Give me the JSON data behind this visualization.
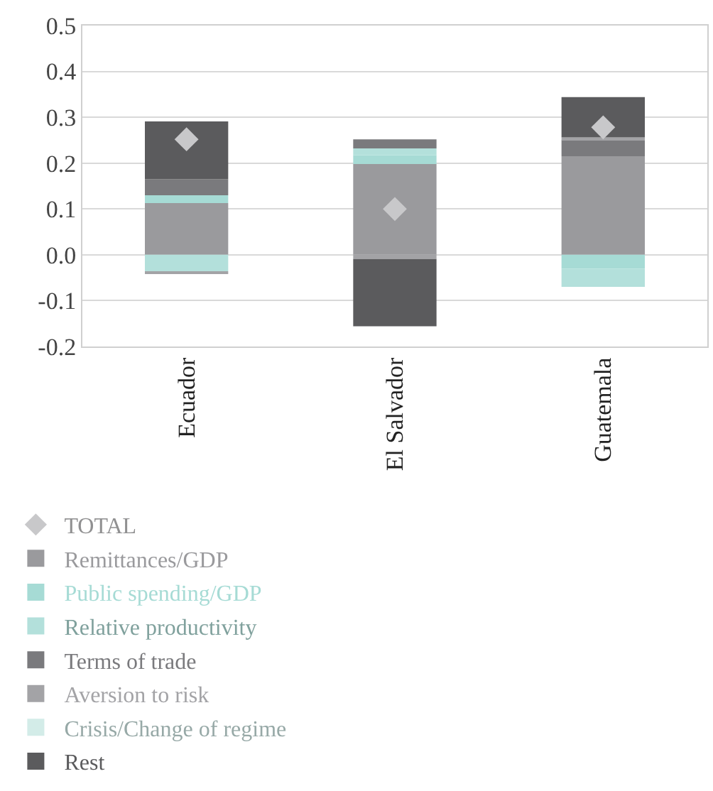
{
  "chart_data": {
    "type": "bar",
    "stacked": true,
    "categories": [
      "Ecuador",
      "El Salvador",
      "Guatemala"
    ],
    "series": [
      {
        "name": "TOTAL",
        "type": "scatter",
        "marker": "diamond",
        "color": "#c8c8ca",
        "values": [
          0.252,
          0.1,
          0.278
        ]
      },
      {
        "name": "Remittances/GDP",
        "color": "#9a9a9d",
        "values": [
          0.113,
          0.198,
          0.215
        ]
      },
      {
        "name": "Public spending/GDP",
        "color": "#a6dbd5",
        "values": [
          0.017,
          0.019,
          -0.03
        ]
      },
      {
        "name": "Relative productivity",
        "color": "#b3e0db",
        "values": [
          -0.036,
          0.015,
          -0.04
        ]
      },
      {
        "name": "Terms of trade",
        "color": "#7a7a7d",
        "values": [
          0.035,
          0.02,
          0.035
        ]
      },
      {
        "name": "Aversion to risk",
        "color": "#a3a3a6",
        "values": [
          -0.005,
          -0.009,
          0.006
        ]
      },
      {
        "name": "Crisis/Change of regime",
        "color": "#d3ece8",
        "values": [
          null,
          null,
          null
        ]
      },
      {
        "name": "Rest",
        "color": "#5b5b5d",
        "values": [
          0.126,
          -0.147,
          0.088
        ]
      }
    ],
    "ylim": [
      -0.2,
      0.5
    ],
    "yticks": [
      {
        "value": -0.2,
        "label": "-0.2"
      },
      {
        "value": -0.1,
        "label": "-0.1"
      },
      {
        "value": 0,
        "label": "0.0"
      },
      0.1,
      0.2,
      0.3,
      0.4,
      0.5
    ],
    "grid": "y",
    "legend": "bottom"
  }
}
